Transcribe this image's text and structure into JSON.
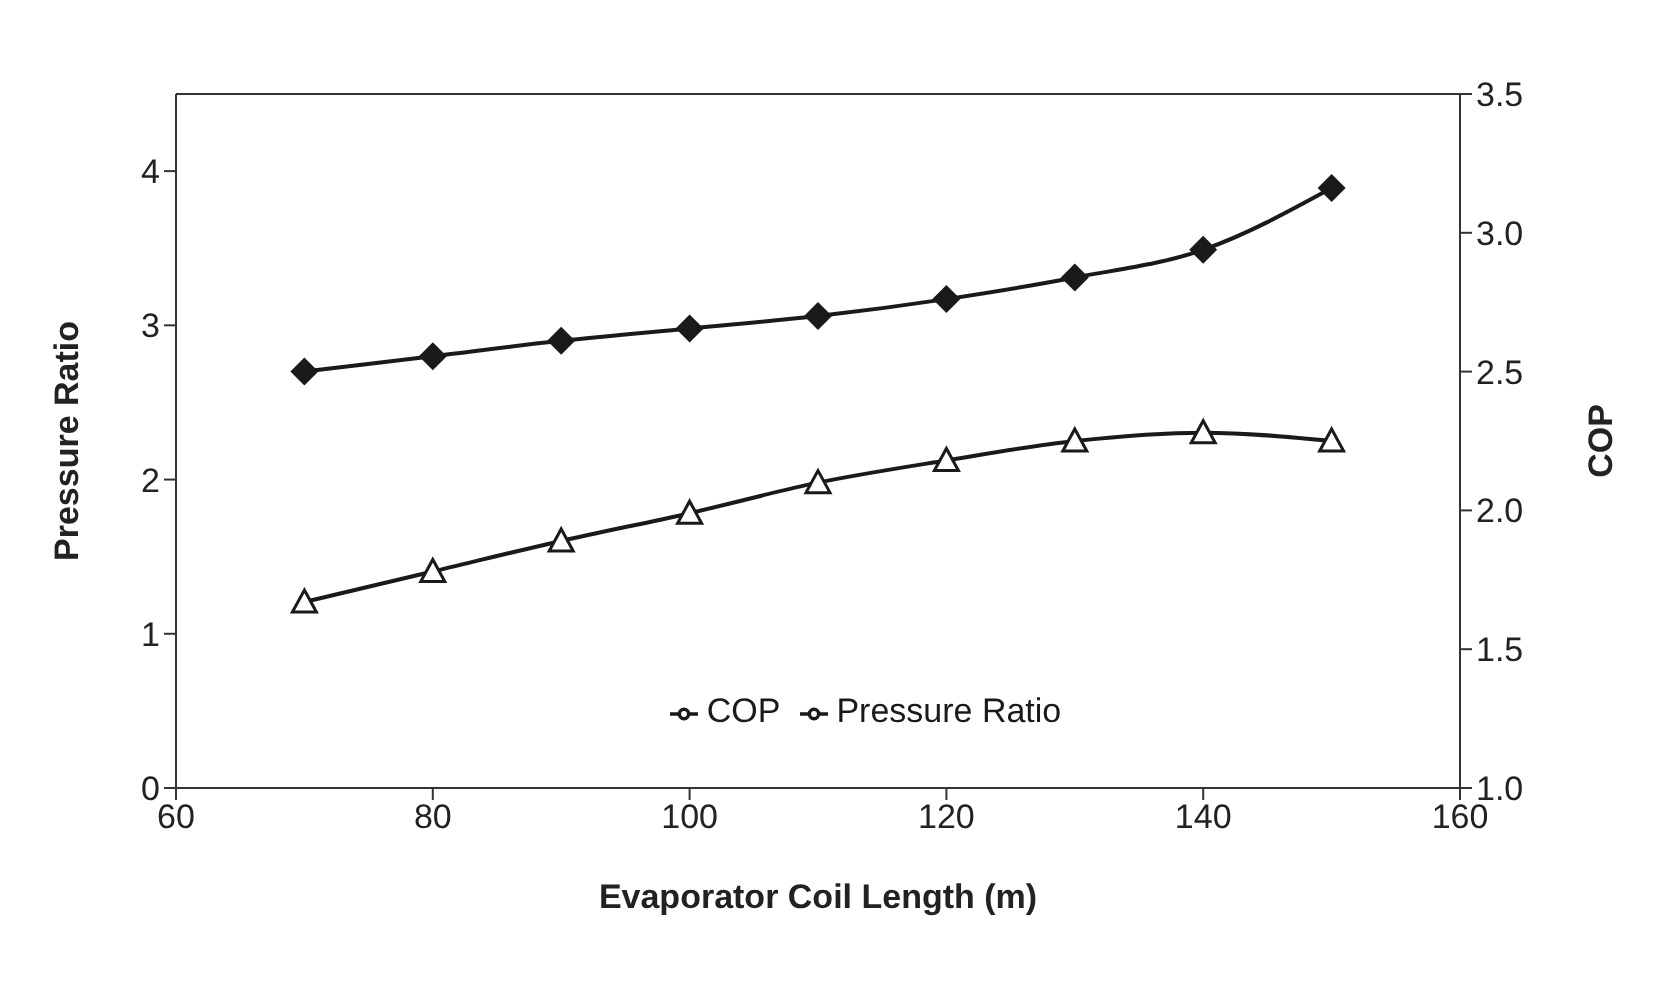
{
  "chart_data": {
    "type": "line",
    "xlabel": "Evaporator Coil Length (m)",
    "ylabel": "Pressure Ratio",
    "y2label": "COP",
    "x": [
      70,
      80,
      90,
      100,
      110,
      120,
      130,
      140,
      150
    ],
    "series": [
      {
        "name": "Pressure Ratio",
        "color": "#1a1a1a",
        "marker": "diamond",
        "values": [
          2.7,
          2.8,
          2.9,
          2.98,
          3.06,
          3.17,
          3.31,
          3.49,
          3.89
        ]
      },
      {
        "name": "COP",
        "color": "#1a1a1a",
        "marker": "triangle",
        "axis": "y2",
        "values": [
          1.67,
          1.78,
          1.89,
          1.99,
          2.1,
          2.18,
          2.25,
          2.28,
          2.25
        ]
      }
    ],
    "xlim": [
      60,
      160
    ],
    "xticks": [
      60,
      80,
      100,
      120,
      140,
      160
    ],
    "ylim": [
      0,
      4.5
    ],
    "yticks": [
      0,
      1,
      2,
      3,
      4
    ],
    "y2lim": [
      1,
      3.5
    ],
    "y2ticks": [
      {
        "value": 1,
        "label": "1.0"
      },
      1.5,
      {
        "value": 2,
        "label": "2.0"
      },
      2.5,
      {
        "value": 3,
        "label": "3.0"
      },
      3.5
    ],
    "grid": false,
    "legend": "bottom"
  }
}
